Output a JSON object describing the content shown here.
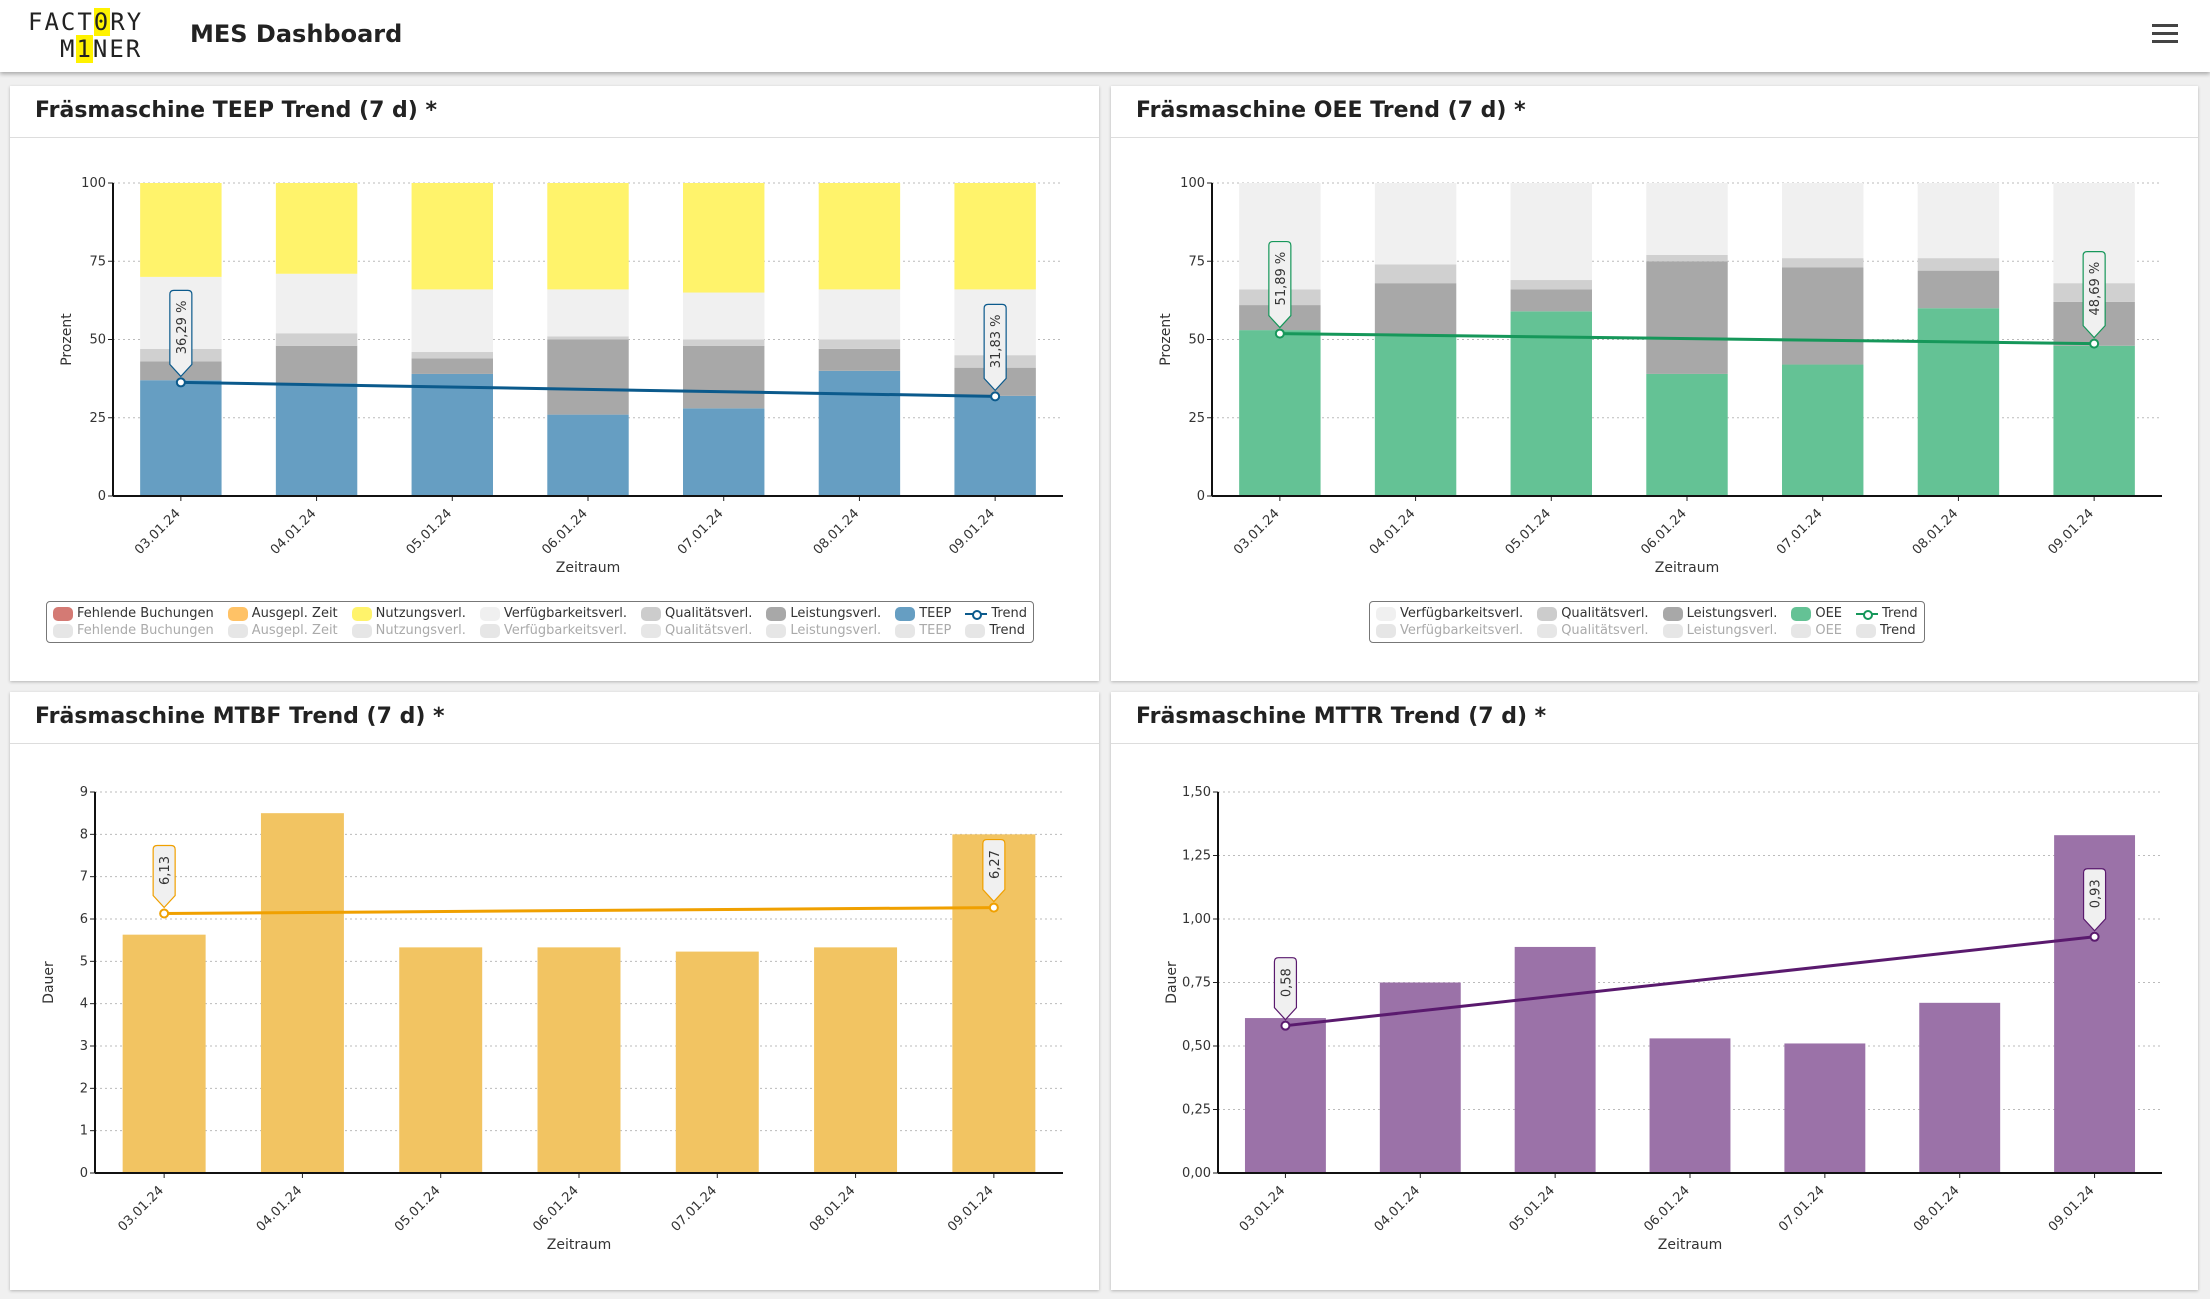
{
  "header": {
    "logo_line1": [
      "FACT",
      "0",
      "RY"
    ],
    "logo_line2": [
      "M",
      "1",
      "NER"
    ],
    "title": "MES Dashboard",
    "menu_icon": "hamburger-icon"
  },
  "cards": [
    {
      "title": "Fräsmaschine TEEP Trend (7 d) *"
    },
    {
      "title": "Fräsmaschine OEE Trend (7 d) *"
    },
    {
      "title": "Fräsmaschine MTBF Trend (7 d) *"
    },
    {
      "title": "Fräsmaschine MTTR Trend (7 d) *"
    }
  ],
  "chart_data": [
    {
      "type": "bar",
      "stacked": true,
      "ylabel": "Prozent",
      "xlabel": "Zeitraum",
      "ylim": [
        0,
        100
      ],
      "yticks": [
        "0",
        "25",
        "50",
        "75",
        "100"
      ],
      "ytick_values": [
        0,
        25,
        50,
        75,
        100
      ],
      "grid": true,
      "categories": [
        "03.01.24",
        "04.01.24",
        "05.01.24",
        "06.01.24",
        "07.01.24",
        "08.01.24",
        "09.01.24"
      ],
      "series": [
        {
          "name": "TEEP",
          "color": "#669ec2",
          "values": [
            37,
            36,
            39,
            26,
            28,
            40,
            32
          ]
        },
        {
          "name": "Leistungsverl.",
          "color": "#a8a8a8",
          "values": [
            6,
            12,
            5,
            24,
            20,
            7,
            9
          ]
        },
        {
          "name": "Qualitätsverl.",
          "color": "#d0d0d0",
          "values": [
            4,
            4,
            2,
            1,
            2,
            3,
            4
          ]
        },
        {
          "name": "Verfügbarkeitsverl.",
          "color": "#f0f0f0",
          "values": [
            23,
            19,
            20,
            15,
            15,
            16,
            21
          ]
        },
        {
          "name": "Nutzungsverl.",
          "color": "#fff36b",
          "values": [
            30,
            29,
            34,
            34,
            35,
            34,
            34
          ]
        }
      ],
      "trend": {
        "name": "Trend",
        "color": "#0b5a8c",
        "start": 36.29,
        "end": 31.83,
        "start_label": "36,29 %",
        "end_label": "31,83 %"
      },
      "legend": {
        "items": [
          {
            "name": "Fehlende Buchungen",
            "color": "#d47a74"
          },
          {
            "name": "Ausgepl. Zeit",
            "color": "#ffc266"
          },
          {
            "name": "Nutzungsverl.",
            "color": "#fff36b"
          },
          {
            "name": "Verfügbarkeitsverl.",
            "color": "#f0f0f0"
          },
          {
            "name": "Qualitätsverl.",
            "color": "#cccccc"
          },
          {
            "name": "Leistungsverl.",
            "color": "#a8a8a8"
          },
          {
            "name": "TEEP",
            "color": "#669ec2"
          },
          {
            "name": "Trend",
            "color": "#0b5a8c",
            "line": true
          }
        ],
        "placement": "bottom-center"
      }
    },
    {
      "type": "bar",
      "stacked": true,
      "ylabel": "Prozent",
      "xlabel": "Zeitraum",
      "ylim": [
        0,
        100
      ],
      "yticks": [
        "0",
        "25",
        "50",
        "75",
        "100"
      ],
      "ytick_values": [
        0,
        25,
        50,
        75,
        100
      ],
      "grid": true,
      "categories": [
        "03.01.24",
        "04.01.24",
        "05.01.24",
        "06.01.24",
        "07.01.24",
        "08.01.24",
        "09.01.24"
      ],
      "series": [
        {
          "name": "OEE",
          "color": "#64c295",
          "values": [
            53,
            51,
            59,
            39,
            42,
            60,
            48
          ]
        },
        {
          "name": "Leistungsverl.",
          "color": "#a8a8a8",
          "values": [
            8,
            17,
            7,
            36,
            31,
            12,
            14
          ]
        },
        {
          "name": "Qualitätsverl.",
          "color": "#d0d0d0",
          "values": [
            5,
            6,
            3,
            2,
            3,
            4,
            6
          ]
        },
        {
          "name": "Verfügbarkeitsverl.",
          "color": "#f0f0f0",
          "values": [
            34,
            26,
            31,
            23,
            24,
            24,
            32
          ]
        }
      ],
      "trend": {
        "name": "Trend",
        "color": "#16975a",
        "start": 51.89,
        "end": 48.69,
        "start_label": "51,89 %",
        "end_label": "48,69 %"
      },
      "legend": {
        "items": [
          {
            "name": "Verfügbarkeitsverl.",
            "color": "#f0f0f0"
          },
          {
            "name": "Qualitätsverl.",
            "color": "#cccccc"
          },
          {
            "name": "Leistungsverl.",
            "color": "#a8a8a8"
          },
          {
            "name": "OEE",
            "color": "#64c295"
          },
          {
            "name": "Trend",
            "color": "#16975a",
            "line": true
          }
        ],
        "placement": "bottom-center"
      }
    },
    {
      "type": "bar",
      "ylabel": "Dauer",
      "xlabel": "Zeitraum",
      "ylim": [
        0,
        9
      ],
      "yticks": [
        "0",
        "1",
        "2",
        "3",
        "4",
        "5",
        "6",
        "7",
        "8",
        "9"
      ],
      "ytick_values": [
        0,
        1,
        2,
        3,
        4,
        5,
        6,
        7,
        8,
        9
      ],
      "grid": true,
      "categories": [
        "03.01.24",
        "04.01.24",
        "05.01.24",
        "06.01.24",
        "07.01.24",
        "08.01.24",
        "09.01.24"
      ],
      "series": [
        {
          "color": "#f2c462",
          "values": [
            5.63,
            8.5,
            5.33,
            5.33,
            5.23,
            5.33,
            8.0
          ]
        }
      ],
      "trend": {
        "color": "#f0a000",
        "start": 6.13,
        "end": 6.27,
        "start_label": "6,13",
        "end_label": "6,27"
      }
    },
    {
      "type": "bar",
      "ylabel": "Dauer",
      "xlabel": "Zeitraum",
      "ylim": [
        0,
        1.5
      ],
      "yticks": [
        "0,00",
        "0,25",
        "0,50",
        "0,75",
        "1,00",
        "1,25",
        "1,50"
      ],
      "ytick_values": [
        0,
        0.25,
        0.5,
        0.75,
        1,
        1.25,
        1.5
      ],
      "grid": true,
      "categories": [
        "03.01.24",
        "04.01.24",
        "05.01.24",
        "06.01.24",
        "07.01.24",
        "08.01.24",
        "09.01.24"
      ],
      "series": [
        {
          "color": "#9b72a8",
          "values": [
            0.61,
            0.75,
            0.89,
            0.53,
            0.51,
            0.67,
            1.33
          ]
        }
      ],
      "trend": {
        "color": "#5a1a6e",
        "start": 0.58,
        "end": 0.93,
        "start_label": "0,58",
        "end_label": "0,93"
      }
    }
  ]
}
